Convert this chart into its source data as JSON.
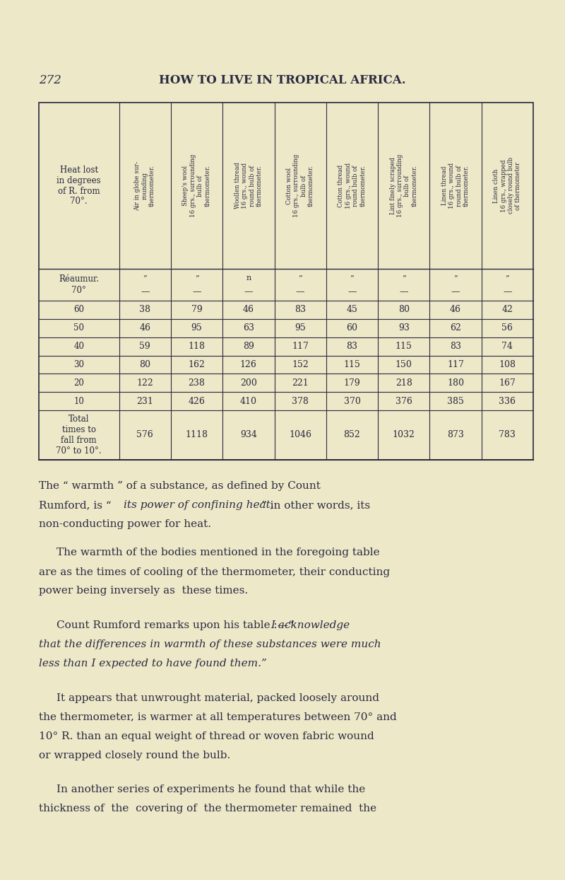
{
  "page_number": "272",
  "page_title": "HOW TO LIVE IN TROPICAL AFRICA.",
  "background_color": "#ede8c8",
  "text_color": "#2a2a40",
  "col_headers": [
    "Air in globe sur-\nrounding\nthermometer.",
    "Sheep's wool\n16 grs., surrounding\nbulb of\nthermometer.",
    "Woollen thread\n16 grs., wound\nround bulb of\nthermometer.",
    "Cotton wool\n16 grs., surrounding\nbulb of\nthermometer.",
    "Cotton thread\n16 grs., wound\nround bulb of\nthermometer.",
    "Lint finely scraped\n16 grs., surrounding\nbulb of\nthermometer.",
    "Linen thread\n16 grs., wound\nround bulb of\nthermometer.",
    "Linen cloth\n16 grs., wrapped\nclosely round bulb\nof thermometer"
  ],
  "row_labels": [
    "Réaumur.\n70°",
    "60",
    "50",
    "40",
    "30",
    "20",
    "10",
    "Total\ntimes to\nfall from\n70° to 10°."
  ],
  "data_rows": [
    [
      "”",
      "”",
      "n",
      "”",
      "”",
      "”",
      "”",
      "”"
    ],
    [
      "38",
      "79",
      "46",
      "83",
      "45",
      "80",
      "46",
      "42"
    ],
    [
      "46",
      "95",
      "63",
      "95",
      "60",
      "93",
      "62",
      "56"
    ],
    [
      "59",
      "118",
      "89",
      "117",
      "83",
      "115",
      "83",
      "74"
    ],
    [
      "80",
      "162",
      "126",
      "152",
      "115",
      "150",
      "117",
      "108"
    ],
    [
      "122",
      "238",
      "200",
      "221",
      "179",
      "218",
      "180",
      "167"
    ],
    [
      "231",
      "426",
      "410",
      "378",
      "370",
      "376",
      "385",
      "336"
    ],
    [
      "576",
      "1118",
      "934",
      "1046",
      "852",
      "1032",
      "873",
      "783"
    ]
  ],
  "dashes_row": [
    "—",
    "—",
    "—",
    "—",
    "—",
    "—",
    "—",
    "—"
  ],
  "p1_pre": "The “ warmth ” of a substance, as defined by Count",
  "p1_line2_pre": "Rumford, is “ ",
  "p1_italic": "its power of confining heat,",
  "p1_line2_post": "” in other words, its",
  "p1_line3": "non-conducting power for heat.",
  "p2_indent": "    The warmth of the bodies mentioned in the foregoing table",
  "p2_line2": "are as the times of cooling of the thermometer, their conducting",
  "p2_line3": "power being inversely as  these times.",
  "p3_indent": "    Count Rumford remarks upon his table :—“ ",
  "p3_italic": "I acknowledge",
  "p3_italic2": "that the differences in warmth of these substances were much",
  "p3_italic3": "less than I expected to have found them.",
  "p3_close": "”",
  "p4_indent": "    It appears that unwrought material, packed loosely around",
  "p4_line2": "the thermometer, is warmer at all temperatures between 70° and",
  "p4_line3": "10° R. than an equal weight of thread or woven fabric wound",
  "p4_line4": "or wrapped closely round the bulb.",
  "p5_indent": "    In another series of experiments he found that while the",
  "p5_line2": "thickness of  the  covering of  the thermometer remained  the"
}
